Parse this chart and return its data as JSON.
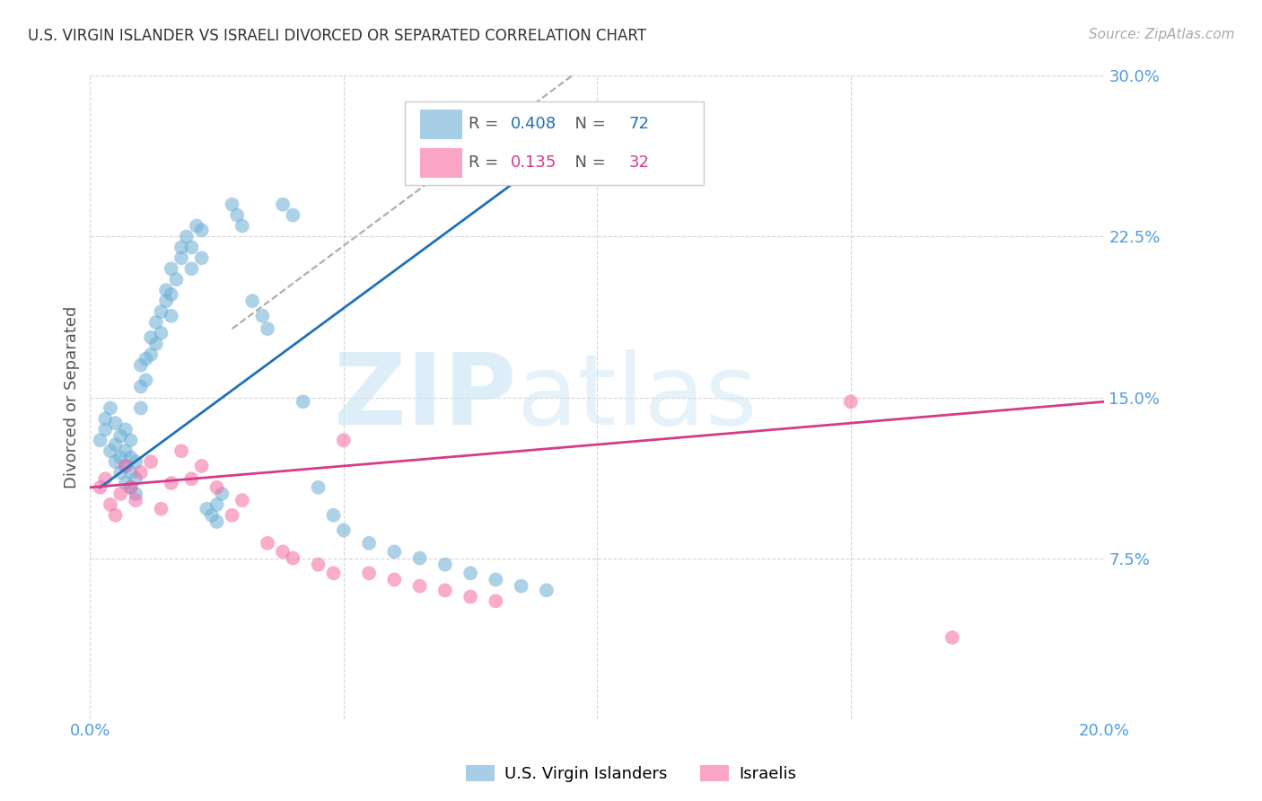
{
  "title": "U.S. VIRGIN ISLANDER VS ISRAELI DIVORCED OR SEPARATED CORRELATION CHART",
  "source": "Source: ZipAtlas.com",
  "ylabel": "Divorced or Separated",
  "xlim": [
    0.0,
    0.2
  ],
  "ylim": [
    0.0,
    0.3
  ],
  "xticks": [
    0.0,
    0.05,
    0.1,
    0.15,
    0.2
  ],
  "xtick_labels": [
    "0.0%",
    "",
    "",
    "",
    "20.0%"
  ],
  "yticks": [
    0.0,
    0.075,
    0.15,
    0.225,
    0.3
  ],
  "ytick_labels": [
    "",
    "7.5%",
    "15.0%",
    "22.5%",
    "30.0%"
  ],
  "blue_R": "0.408",
  "blue_N": "72",
  "pink_R": "0.135",
  "pink_N": "32",
  "blue_color": "#6baed6",
  "pink_color": "#f768a1",
  "blue_line_color": "#2171b5",
  "pink_line_color": "#d63b8a",
  "grid_color": "#cccccc",
  "title_color": "#333333",
  "axis_label_color": "#555555",
  "tick_label_color": "#4d9de0",
  "watermark_zip": "ZIP",
  "watermark_atlas": "atlas",
  "legend_label_blue": "U.S. Virgin Islanders",
  "legend_label_pink": "Israelis",
  "blue_scatter_x": [
    0.002,
    0.003,
    0.003,
    0.004,
    0.004,
    0.005,
    0.005,
    0.005,
    0.006,
    0.006,
    0.006,
    0.007,
    0.007,
    0.007,
    0.007,
    0.008,
    0.008,
    0.008,
    0.008,
    0.009,
    0.009,
    0.009,
    0.01,
    0.01,
    0.01,
    0.011,
    0.011,
    0.012,
    0.012,
    0.013,
    0.013,
    0.014,
    0.014,
    0.015,
    0.015,
    0.016,
    0.016,
    0.016,
    0.017,
    0.018,
    0.018,
    0.019,
    0.02,
    0.02,
    0.021,
    0.022,
    0.022,
    0.023,
    0.024,
    0.025,
    0.025,
    0.026,
    0.028,
    0.029,
    0.03,
    0.032,
    0.034,
    0.035,
    0.038,
    0.04,
    0.042,
    0.045,
    0.048,
    0.05,
    0.055,
    0.06,
    0.065,
    0.07,
    0.075,
    0.08,
    0.085,
    0.09
  ],
  "blue_scatter_y": [
    0.13,
    0.135,
    0.14,
    0.125,
    0.145,
    0.12,
    0.128,
    0.138,
    0.115,
    0.122,
    0.132,
    0.11,
    0.118,
    0.125,
    0.135,
    0.108,
    0.115,
    0.122,
    0.13,
    0.105,
    0.112,
    0.12,
    0.145,
    0.155,
    0.165,
    0.158,
    0.168,
    0.17,
    0.178,
    0.175,
    0.185,
    0.18,
    0.19,
    0.195,
    0.2,
    0.188,
    0.198,
    0.21,
    0.205,
    0.215,
    0.22,
    0.225,
    0.21,
    0.22,
    0.23,
    0.215,
    0.228,
    0.098,
    0.095,
    0.092,
    0.1,
    0.105,
    0.24,
    0.235,
    0.23,
    0.195,
    0.188,
    0.182,
    0.24,
    0.235,
    0.148,
    0.108,
    0.095,
    0.088,
    0.082,
    0.078,
    0.075,
    0.072,
    0.068,
    0.065,
    0.062,
    0.06
  ],
  "pink_scatter_x": [
    0.002,
    0.003,
    0.004,
    0.005,
    0.006,
    0.007,
    0.008,
    0.009,
    0.01,
    0.012,
    0.014,
    0.016,
    0.018,
    0.02,
    0.022,
    0.025,
    0.028,
    0.03,
    0.035,
    0.038,
    0.04,
    0.045,
    0.048,
    0.05,
    0.055,
    0.06,
    0.065,
    0.07,
    0.075,
    0.08,
    0.15,
    0.17
  ],
  "pink_scatter_y": [
    0.108,
    0.112,
    0.1,
    0.095,
    0.105,
    0.118,
    0.108,
    0.102,
    0.115,
    0.12,
    0.098,
    0.11,
    0.125,
    0.112,
    0.118,
    0.108,
    0.095,
    0.102,
    0.082,
    0.078,
    0.075,
    0.072,
    0.068,
    0.13,
    0.068,
    0.065,
    0.062,
    0.06,
    0.057,
    0.055,
    0.148,
    0.038
  ],
  "blue_line_x": [
    0.002,
    0.095
  ],
  "blue_line_y": [
    0.108,
    0.27
  ],
  "pink_line_x": [
    0.0,
    0.2
  ],
  "pink_line_y": [
    0.108,
    0.148
  ],
  "dashed_line_x": [
    0.028,
    0.095
  ],
  "dashed_line_y": [
    0.182,
    0.3
  ]
}
